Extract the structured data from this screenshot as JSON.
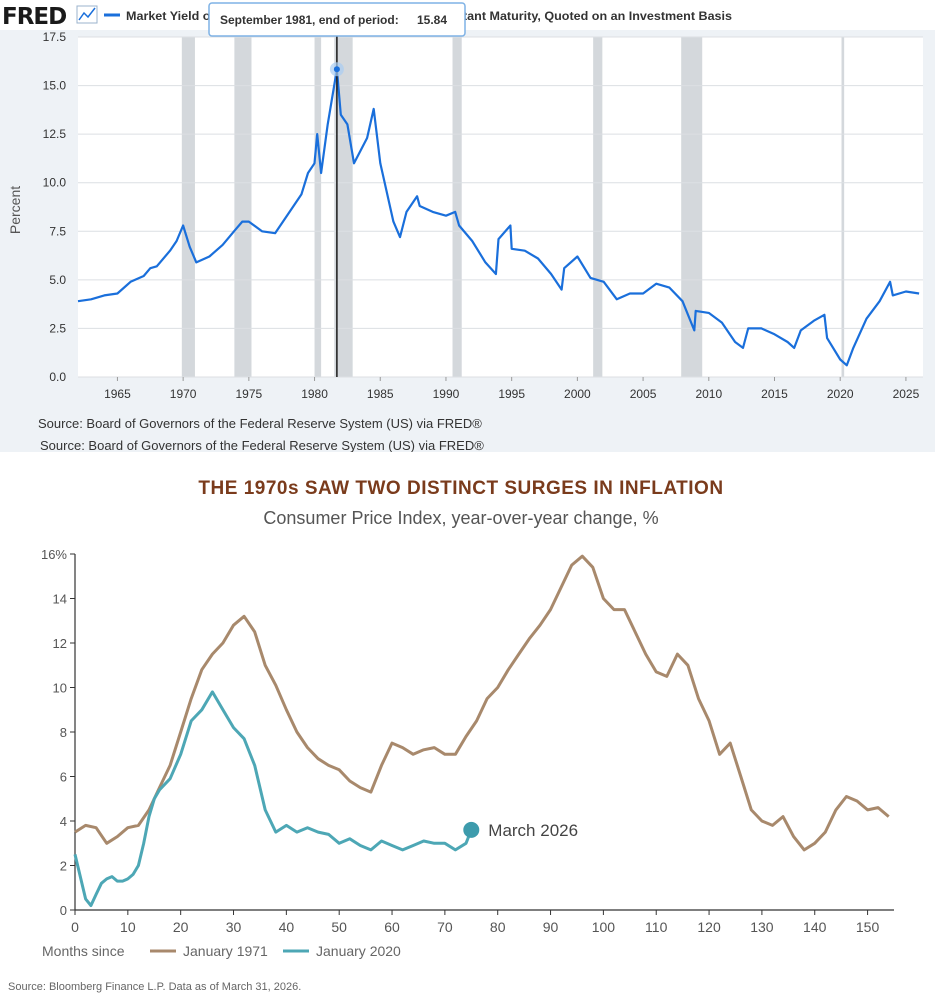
{
  "fred_chart": {
    "logo": "FRED",
    "legend_label": "Market Yield on U.S. Treasury Securities at 10-Year Constant Maturity, Quoted on an Investment Basis",
    "tooltip": {
      "label": "September 1981, end of period:",
      "value": "15.84"
    },
    "source_line_1": "Source: Board of Governors of the Federal Reserve System (US) via FRED®",
    "source_line_2": "Source: Board of Governors of the Federal Reserve System (US) via FRED®",
    "colors": {
      "line": "#1a6fdb",
      "recession": "#d4d8dc",
      "grid": "#dcdfe3",
      "highlight": "#1a1a1a"
    }
  },
  "inflation_chart": {
    "title": "THE 1970s SAW TWO DISTINCT SURGES IN INFLATION",
    "subtitle": "Consumer Price Index, year-over-year change, %",
    "legend_prefix": "Months since",
    "annotation": "March 2026",
    "source": "Source: Bloomberg Finance L.P. Data as of March 31, 2026.",
    "colors": {
      "series_1971": "#a8896c",
      "series_2020": "#4da7b5",
      "title": "#7a3b1c",
      "marker": "#3d9bac"
    }
  },
  "chart_data": [
    {
      "type": "line",
      "title": "Market Yield on U.S. Treasury Securities at 10-Year Constant Maturity, Quoted on an Investment Basis",
      "xlabel": "",
      "ylabel": "Percent",
      "xlim": [
        1962,
        2026.3
      ],
      "ylim": [
        0,
        17.5
      ],
      "x_ticks": [
        "1965",
        "1970",
        "1975",
        "1980",
        "1985",
        "1990",
        "1995",
        "2000",
        "2005",
        "2010",
        "2015",
        "2020",
        "2025"
      ],
      "y_ticks": [
        "0.0",
        "2.5",
        "5.0",
        "7.5",
        "10.0",
        "12.5",
        "15.0",
        "17.5"
      ],
      "grid": true,
      "highlight": {
        "x": 1981.7,
        "y": 15.84,
        "label": "September 1981"
      },
      "recessions": [
        [
          1969.9,
          1970.9
        ],
        [
          1973.9,
          1975.2
        ],
        [
          1980.0,
          1980.5
        ],
        [
          1981.5,
          1982.9
        ],
        [
          1990.5,
          1991.2
        ],
        [
          2001.2,
          2001.9
        ],
        [
          2007.9,
          2009.5
        ],
        [
          2020.1,
          2020.3
        ]
      ],
      "series": [
        {
          "x": [
            1962,
            1963,
            1964,
            1965,
            1966,
            1967,
            1967.5,
            1968,
            1969,
            1969.5,
            1970,
            1970.5,
            1971,
            1972,
            1973,
            1974,
            1974.5,
            1975,
            1976,
            1977,
            1978,
            1979,
            1979.5,
            1980,
            1980.2,
            1980.5,
            1981,
            1981.7,
            1982,
            1982.5,
            1983,
            1984,
            1984.5,
            1985,
            1986,
            1986.5,
            1987,
            1987.8,
            1988,
            1989,
            1990,
            1990.7,
            1991,
            1992,
            1993,
            1993.8,
            1994,
            1994.9,
            1995,
            1996,
            1997,
            1998,
            1998.8,
            1999,
            2000,
            2001,
            2002,
            2003,
            2004,
            2005,
            2006,
            2007,
            2008,
            2008.9,
            2009,
            2010,
            2011,
            2012,
            2012.6,
            2013,
            2014,
            2015,
            2016,
            2016.5,
            2017,
            2018,
            2018.8,
            2019,
            2020,
            2020.5,
            2021,
            2022,
            2023,
            2023.8,
            2024,
            2025,
            2026
          ],
          "y": [
            3.9,
            4.0,
            4.2,
            4.3,
            4.9,
            5.2,
            5.6,
            5.7,
            6.5,
            7.0,
            7.8,
            6.7,
            5.9,
            6.2,
            6.8,
            7.6,
            8.0,
            8.0,
            7.5,
            7.4,
            8.4,
            9.4,
            10.5,
            11.0,
            12.5,
            10.5,
            13.0,
            15.84,
            13.5,
            13.0,
            11.0,
            12.3,
            13.8,
            11.0,
            8.0,
            7.2,
            8.5,
            9.3,
            8.8,
            8.5,
            8.3,
            8.5,
            7.8,
            7.0,
            5.9,
            5.3,
            7.1,
            7.8,
            6.6,
            6.5,
            6.1,
            5.3,
            4.5,
            5.6,
            6.2,
            5.1,
            4.9,
            4.0,
            4.3,
            4.3,
            4.8,
            4.6,
            3.9,
            2.4,
            3.4,
            3.3,
            2.8,
            1.8,
            1.5,
            2.5,
            2.5,
            2.2,
            1.8,
            1.5,
            2.4,
            2.9,
            3.2,
            2.0,
            0.9,
            0.6,
            1.5,
            3.0,
            3.9,
            4.9,
            4.2,
            4.4,
            4.3
          ]
        }
      ]
    },
    {
      "type": "line",
      "title": "THE 1970s SAW TWO DISTINCT SURGES IN INFLATION",
      "subtitle": "Consumer Price Index, year-over-year change, %",
      "xlabel": "Months since",
      "ylabel": "",
      "xlim": [
        0,
        155
      ],
      "ylim": [
        0,
        16
      ],
      "x_ticks": [
        "0",
        "10",
        "20",
        "30",
        "40",
        "50",
        "60",
        "70",
        "80",
        "90",
        "100",
        "110",
        "120",
        "130",
        "140",
        "150"
      ],
      "y_ticks": [
        "0",
        "2",
        "4",
        "6",
        "8",
        "10",
        "12",
        "14",
        "16%"
      ],
      "grid": false,
      "legend_position": "bottom-left",
      "annotation": {
        "x": 75,
        "y": 3.6,
        "text": "March 2026"
      },
      "series": [
        {
          "name": "January 1971",
          "x": [
            0,
            2,
            4,
            6,
            8,
            10,
            12,
            14,
            16,
            18,
            20,
            22,
            24,
            26,
            28,
            30,
            32,
            34,
            36,
            38,
            40,
            42,
            44,
            46,
            48,
            50,
            52,
            54,
            56,
            58,
            60,
            62,
            64,
            66,
            68,
            70,
            72,
            74,
            76,
            78,
            80,
            82,
            84,
            86,
            88,
            90,
            92,
            94,
            96,
            98,
            100,
            102,
            104,
            106,
            108,
            110,
            112,
            114,
            116,
            118,
            120,
            122,
            124,
            126,
            128,
            130,
            132,
            134,
            136,
            138,
            140,
            142,
            144,
            146,
            148,
            150,
            152,
            154
          ],
          "y": [
            3.5,
            3.8,
            3.7,
            3.0,
            3.3,
            3.7,
            3.8,
            4.5,
            5.5,
            6.5,
            8.0,
            9.5,
            10.8,
            11.5,
            12.0,
            12.8,
            13.2,
            12.5,
            11.0,
            10.1,
            9.0,
            8.0,
            7.3,
            6.8,
            6.5,
            6.3,
            5.8,
            5.5,
            5.3,
            6.5,
            7.5,
            7.3,
            7.0,
            7.2,
            7.3,
            7.0,
            7.0,
            7.8,
            8.5,
            9.5,
            10.0,
            10.8,
            11.5,
            12.2,
            12.8,
            13.5,
            14.5,
            15.5,
            15.9,
            15.4,
            14.0,
            13.5,
            13.5,
            12.5,
            11.5,
            10.7,
            10.5,
            11.5,
            11.0,
            9.5,
            8.5,
            7.0,
            7.5,
            6.0,
            4.5,
            4.0,
            3.8,
            4.2,
            3.3,
            2.7,
            3.0,
            3.5,
            4.5,
            5.1,
            4.9,
            4.5,
            4.6,
            4.2
          ]
        },
        {
          "name": "January 2020",
          "x": [
            0,
            1,
            2,
            3,
            4,
            5,
            6,
            7,
            8,
            9,
            10,
            11,
            12,
            13,
            14,
            15,
            16,
            18,
            20,
            22,
            24,
            26,
            28,
            30,
            32,
            34,
            36,
            38,
            40,
            42,
            44,
            46,
            48,
            50,
            52,
            54,
            56,
            58,
            60,
            62,
            64,
            66,
            68,
            70,
            72,
            74,
            75
          ],
          "y": [
            2.5,
            1.5,
            0.5,
            0.2,
            0.7,
            1.2,
            1.4,
            1.5,
            1.3,
            1.3,
            1.4,
            1.6,
            2.0,
            3.0,
            4.2,
            5.0,
            5.4,
            5.9,
            7.0,
            8.5,
            9.0,
            9.8,
            9.0,
            8.2,
            7.7,
            6.5,
            4.5,
            3.5,
            3.8,
            3.5,
            3.7,
            3.5,
            3.4,
            3.0,
            3.2,
            2.9,
            2.7,
            3.1,
            2.9,
            2.7,
            2.9,
            3.1,
            3.0,
            3.0,
            2.7,
            3.0,
            3.6
          ]
        }
      ]
    }
  ]
}
